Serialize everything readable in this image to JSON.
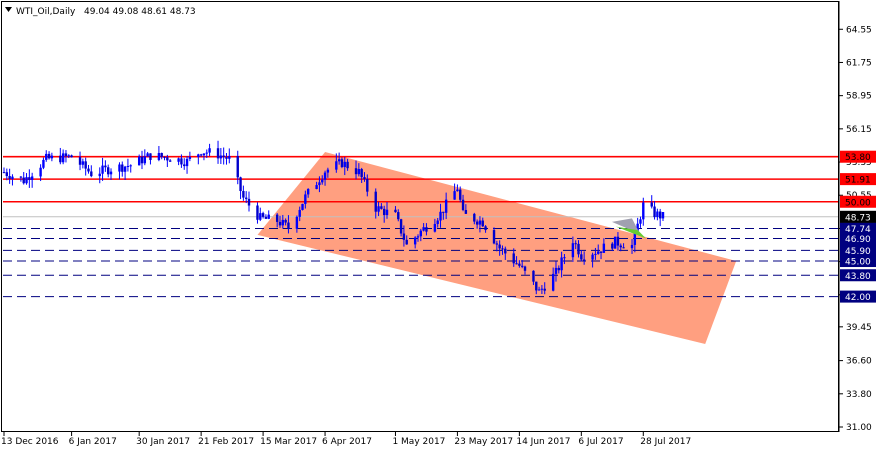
{
  "header": {
    "symbol": "WTI_Oil,Daily",
    "ohlc": "49.04 49.08 48.61 48.73"
  },
  "colors": {
    "background": "#ffffff",
    "frame": "#000000",
    "candle_up": "#0000ff",
    "candle_down": "#0000cc",
    "resistance_line": "#ff0000",
    "support_line": "#000080",
    "channel_fill": "#ff9f80",
    "price_tag_bg": "#000000",
    "price_tag_text": "#ffffff",
    "highlight_green": "#66cc33",
    "highlight_gray": "#a0a0b0"
  },
  "chart_data": {
    "type": "candlestick",
    "x_start": "2016-12-13",
    "x_end": "2017-08-04",
    "x_ticks": [
      "13 Dec 2016",
      "6 Jan 2017",
      "30 Jan 2017",
      "21 Feb 2017",
      "15 Mar 2017",
      "6 Apr 2017",
      "1 May 2017",
      "23 May 2017",
      "14 Jun 2017",
      "6 Jul 2017",
      "28 Jul 2017"
    ],
    "y_ticks": [
      64.55,
      61.75,
      58.95,
      56.15,
      53.35,
      50.55,
      47.75,
      44.95,
      42.15,
      39.45,
      36.6,
      33.8,
      31.0
    ],
    "y_tick_labels": [
      "64.55",
      "61.75",
      "58.95",
      "56.15",
      "53.35",
      "50.55",
      "47.75",
      "44.95",
      "42.15",
      "39.45",
      "36.60",
      "33.80",
      "31.00"
    ],
    "ylim": [
      31.0,
      66.85
    ],
    "current_price": {
      "value": 48.73,
      "label": "48.73"
    },
    "resistance_lines": [
      {
        "value": 53.8,
        "label": "53.80"
      },
      {
        "value": 51.91,
        "label": "51.91"
      },
      {
        "value": 50.0,
        "label": "50.00"
      }
    ],
    "support_lines": [
      {
        "value": 47.74,
        "label": "47.74"
      },
      {
        "value": 46.9,
        "label": "46.90"
      },
      {
        "value": 45.9,
        "label": "45.90"
      },
      {
        "value": 45.0,
        "label": "45.00"
      },
      {
        "value": 43.8,
        "label": "43.80"
      },
      {
        "value": 42.0,
        "label": "42.00"
      }
    ],
    "channel": {
      "upper": [
        [
          "2017-04-06",
          54.2
        ],
        [
          "2017-08-30",
          45.0
        ]
      ],
      "lower": [
        [
          "2017-03-13",
          47.2
        ],
        [
          "2017-08-19",
          38.0
        ]
      ]
    },
    "price_path": [
      [
        "2016-12-13",
        52.5
      ],
      [
        "2016-12-20",
        51.8
      ],
      [
        "2016-12-28",
        53.6
      ],
      [
        "2017-01-06",
        53.8
      ],
      [
        "2017-01-13",
        52.4
      ],
      [
        "2017-01-20",
        52.8
      ],
      [
        "2017-01-27",
        53.1
      ],
      [
        "2017-02-03",
        53.9
      ],
      [
        "2017-02-10",
        53.7
      ],
      [
        "2017-02-16",
        53.4
      ],
      [
        "2017-02-21",
        54.3
      ],
      [
        "2017-02-27",
        54.0
      ],
      [
        "2017-03-03",
        53.6
      ],
      [
        "2017-03-08",
        50.3
      ],
      [
        "2017-03-14",
        48.6
      ],
      [
        "2017-03-20",
        48.4
      ],
      [
        "2017-03-24",
        47.8
      ],
      [
        "2017-03-30",
        50.4
      ],
      [
        "2017-04-06",
        52.6
      ],
      [
        "2017-04-12",
        53.3
      ],
      [
        "2017-04-18",
        52.5
      ],
      [
        "2017-04-24",
        49.5
      ],
      [
        "2017-05-01",
        48.8
      ],
      [
        "2017-05-05",
        46.3
      ],
      [
        "2017-05-10",
        47.5
      ],
      [
        "2017-05-17",
        49.0
      ],
      [
        "2017-05-23",
        51.2
      ],
      [
        "2017-05-25",
        48.9
      ],
      [
        "2017-06-01",
        48.3
      ],
      [
        "2017-06-07",
        46.1
      ],
      [
        "2017-06-14",
        44.6
      ],
      [
        "2017-06-21",
        42.4
      ],
      [
        "2017-06-27",
        44.0
      ],
      [
        "2017-07-03",
        46.8
      ],
      [
        "2017-07-06",
        45.5
      ],
      [
        "2017-07-12",
        45.9
      ],
      [
        "2017-07-18",
        46.6
      ],
      [
        "2017-07-24",
        46.3
      ],
      [
        "2017-07-28",
        49.7
      ],
      [
        "2017-08-01",
        49.0
      ],
      [
        "2017-08-04",
        48.73
      ]
    ]
  }
}
